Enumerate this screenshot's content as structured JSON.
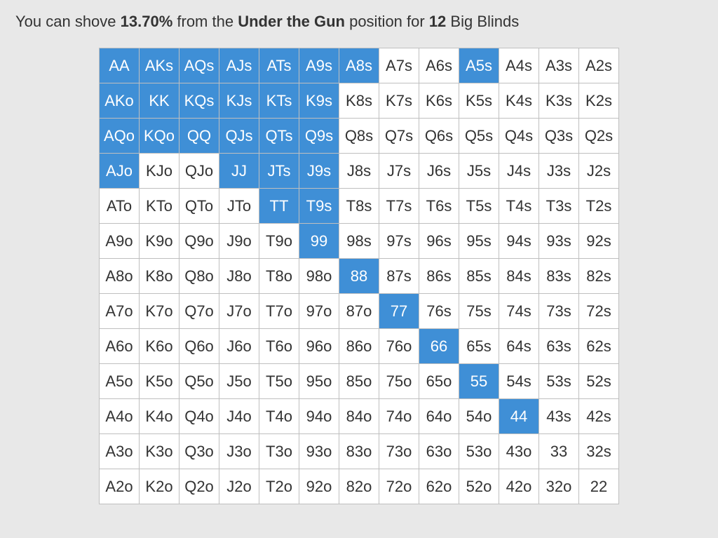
{
  "heading": {
    "prefix": "You can shove ",
    "percent": "13.70%",
    "mid1": " from the ",
    "position": "Under the Gun",
    "mid2": " position for ",
    "blinds": "12",
    "suffix": " Big Blinds"
  },
  "chart": {
    "type": "table",
    "background_color": "#e8e8e8",
    "cell_bg_default": "#ffffff",
    "cell_bg_selected": "#3f8fd6",
    "cell_text_default": "#333333",
    "cell_text_selected": "#ffffff",
    "cell_border_color": "#bfbfbf",
    "cell_font_size_pt": 16,
    "ranks": [
      "A",
      "K",
      "Q",
      "J",
      "T",
      "9",
      "8",
      "7",
      "6",
      "5",
      "4",
      "3",
      "2"
    ],
    "grid": [
      [
        {
          "l": "AA",
          "s": 1
        },
        {
          "l": "AKs",
          "s": 1
        },
        {
          "l": "AQs",
          "s": 1
        },
        {
          "l": "AJs",
          "s": 1
        },
        {
          "l": "ATs",
          "s": 1
        },
        {
          "l": "A9s",
          "s": 1
        },
        {
          "l": "A8s",
          "s": 1
        },
        {
          "l": "A7s",
          "s": 0
        },
        {
          "l": "A6s",
          "s": 0
        },
        {
          "l": "A5s",
          "s": 1
        },
        {
          "l": "A4s",
          "s": 0
        },
        {
          "l": "A3s",
          "s": 0
        },
        {
          "l": "A2s",
          "s": 0
        }
      ],
      [
        {
          "l": "AKo",
          "s": 1
        },
        {
          "l": "KK",
          "s": 1
        },
        {
          "l": "KQs",
          "s": 1
        },
        {
          "l": "KJs",
          "s": 1
        },
        {
          "l": "KTs",
          "s": 1
        },
        {
          "l": "K9s",
          "s": 1
        },
        {
          "l": "K8s",
          "s": 0
        },
        {
          "l": "K7s",
          "s": 0
        },
        {
          "l": "K6s",
          "s": 0
        },
        {
          "l": "K5s",
          "s": 0
        },
        {
          "l": "K4s",
          "s": 0
        },
        {
          "l": "K3s",
          "s": 0
        },
        {
          "l": "K2s",
          "s": 0
        }
      ],
      [
        {
          "l": "AQo",
          "s": 1
        },
        {
          "l": "KQo",
          "s": 1
        },
        {
          "l": "QQ",
          "s": 1
        },
        {
          "l": "QJs",
          "s": 1
        },
        {
          "l": "QTs",
          "s": 1
        },
        {
          "l": "Q9s",
          "s": 1
        },
        {
          "l": "Q8s",
          "s": 0
        },
        {
          "l": "Q7s",
          "s": 0
        },
        {
          "l": "Q6s",
          "s": 0
        },
        {
          "l": "Q5s",
          "s": 0
        },
        {
          "l": "Q4s",
          "s": 0
        },
        {
          "l": "Q3s",
          "s": 0
        },
        {
          "l": "Q2s",
          "s": 0
        }
      ],
      [
        {
          "l": "AJo",
          "s": 1
        },
        {
          "l": "KJo",
          "s": 0
        },
        {
          "l": "QJo",
          "s": 0
        },
        {
          "l": "JJ",
          "s": 1
        },
        {
          "l": "JTs",
          "s": 1
        },
        {
          "l": "J9s",
          "s": 1
        },
        {
          "l": "J8s",
          "s": 0
        },
        {
          "l": "J7s",
          "s": 0
        },
        {
          "l": "J6s",
          "s": 0
        },
        {
          "l": "J5s",
          "s": 0
        },
        {
          "l": "J4s",
          "s": 0
        },
        {
          "l": "J3s",
          "s": 0
        },
        {
          "l": "J2s",
          "s": 0
        }
      ],
      [
        {
          "l": "ATo",
          "s": 0
        },
        {
          "l": "KTo",
          "s": 0
        },
        {
          "l": "QTo",
          "s": 0
        },
        {
          "l": "JTo",
          "s": 0
        },
        {
          "l": "TT",
          "s": 1
        },
        {
          "l": "T9s",
          "s": 1
        },
        {
          "l": "T8s",
          "s": 0
        },
        {
          "l": "T7s",
          "s": 0
        },
        {
          "l": "T6s",
          "s": 0
        },
        {
          "l": "T5s",
          "s": 0
        },
        {
          "l": "T4s",
          "s": 0
        },
        {
          "l": "T3s",
          "s": 0
        },
        {
          "l": "T2s",
          "s": 0
        }
      ],
      [
        {
          "l": "A9o",
          "s": 0
        },
        {
          "l": "K9o",
          "s": 0
        },
        {
          "l": "Q9o",
          "s": 0
        },
        {
          "l": "J9o",
          "s": 0
        },
        {
          "l": "T9o",
          "s": 0
        },
        {
          "l": "99",
          "s": 1
        },
        {
          "l": "98s",
          "s": 0
        },
        {
          "l": "97s",
          "s": 0
        },
        {
          "l": "96s",
          "s": 0
        },
        {
          "l": "95s",
          "s": 0
        },
        {
          "l": "94s",
          "s": 0
        },
        {
          "l": "93s",
          "s": 0
        },
        {
          "l": "92s",
          "s": 0
        }
      ],
      [
        {
          "l": "A8o",
          "s": 0
        },
        {
          "l": "K8o",
          "s": 0
        },
        {
          "l": "Q8o",
          "s": 0
        },
        {
          "l": "J8o",
          "s": 0
        },
        {
          "l": "T8o",
          "s": 0
        },
        {
          "l": "98o",
          "s": 0
        },
        {
          "l": "88",
          "s": 1
        },
        {
          "l": "87s",
          "s": 0
        },
        {
          "l": "86s",
          "s": 0
        },
        {
          "l": "85s",
          "s": 0
        },
        {
          "l": "84s",
          "s": 0
        },
        {
          "l": "83s",
          "s": 0
        },
        {
          "l": "82s",
          "s": 0
        }
      ],
      [
        {
          "l": "A7o",
          "s": 0
        },
        {
          "l": "K7o",
          "s": 0
        },
        {
          "l": "Q7o",
          "s": 0
        },
        {
          "l": "J7o",
          "s": 0
        },
        {
          "l": "T7o",
          "s": 0
        },
        {
          "l": "97o",
          "s": 0
        },
        {
          "l": "87o",
          "s": 0
        },
        {
          "l": "77",
          "s": 1
        },
        {
          "l": "76s",
          "s": 0
        },
        {
          "l": "75s",
          "s": 0
        },
        {
          "l": "74s",
          "s": 0
        },
        {
          "l": "73s",
          "s": 0
        },
        {
          "l": "72s",
          "s": 0
        }
      ],
      [
        {
          "l": "A6o",
          "s": 0
        },
        {
          "l": "K6o",
          "s": 0
        },
        {
          "l": "Q6o",
          "s": 0
        },
        {
          "l": "J6o",
          "s": 0
        },
        {
          "l": "T6o",
          "s": 0
        },
        {
          "l": "96o",
          "s": 0
        },
        {
          "l": "86o",
          "s": 0
        },
        {
          "l": "76o",
          "s": 0
        },
        {
          "l": "66",
          "s": 1
        },
        {
          "l": "65s",
          "s": 0
        },
        {
          "l": "64s",
          "s": 0
        },
        {
          "l": "63s",
          "s": 0
        },
        {
          "l": "62s",
          "s": 0
        }
      ],
      [
        {
          "l": "A5o",
          "s": 0
        },
        {
          "l": "K5o",
          "s": 0
        },
        {
          "l": "Q5o",
          "s": 0
        },
        {
          "l": "J5o",
          "s": 0
        },
        {
          "l": "T5o",
          "s": 0
        },
        {
          "l": "95o",
          "s": 0
        },
        {
          "l": "85o",
          "s": 0
        },
        {
          "l": "75o",
          "s": 0
        },
        {
          "l": "65o",
          "s": 0
        },
        {
          "l": "55",
          "s": 1
        },
        {
          "l": "54s",
          "s": 0
        },
        {
          "l": "53s",
          "s": 0
        },
        {
          "l": "52s",
          "s": 0
        }
      ],
      [
        {
          "l": "A4o",
          "s": 0
        },
        {
          "l": "K4o",
          "s": 0
        },
        {
          "l": "Q4o",
          "s": 0
        },
        {
          "l": "J4o",
          "s": 0
        },
        {
          "l": "T4o",
          "s": 0
        },
        {
          "l": "94o",
          "s": 0
        },
        {
          "l": "84o",
          "s": 0
        },
        {
          "l": "74o",
          "s": 0
        },
        {
          "l": "64o",
          "s": 0
        },
        {
          "l": "54o",
          "s": 0
        },
        {
          "l": "44",
          "s": 1
        },
        {
          "l": "43s",
          "s": 0
        },
        {
          "l": "42s",
          "s": 0
        }
      ],
      [
        {
          "l": "A3o",
          "s": 0
        },
        {
          "l": "K3o",
          "s": 0
        },
        {
          "l": "Q3o",
          "s": 0
        },
        {
          "l": "J3o",
          "s": 0
        },
        {
          "l": "T3o",
          "s": 0
        },
        {
          "l": "93o",
          "s": 0
        },
        {
          "l": "83o",
          "s": 0
        },
        {
          "l": "73o",
          "s": 0
        },
        {
          "l": "63o",
          "s": 0
        },
        {
          "l": "53o",
          "s": 0
        },
        {
          "l": "43o",
          "s": 0
        },
        {
          "l": "33",
          "s": 0
        },
        {
          "l": "32s",
          "s": 0
        }
      ],
      [
        {
          "l": "A2o",
          "s": 0
        },
        {
          "l": "K2o",
          "s": 0
        },
        {
          "l": "Q2o",
          "s": 0
        },
        {
          "l": "J2o",
          "s": 0
        },
        {
          "l": "T2o",
          "s": 0
        },
        {
          "l": "92o",
          "s": 0
        },
        {
          "l": "82o",
          "s": 0
        },
        {
          "l": "72o",
          "s": 0
        },
        {
          "l": "62o",
          "s": 0
        },
        {
          "l": "52o",
          "s": 0
        },
        {
          "l": "42o",
          "s": 0
        },
        {
          "l": "32o",
          "s": 0
        },
        {
          "l": "22",
          "s": 0
        }
      ]
    ]
  }
}
